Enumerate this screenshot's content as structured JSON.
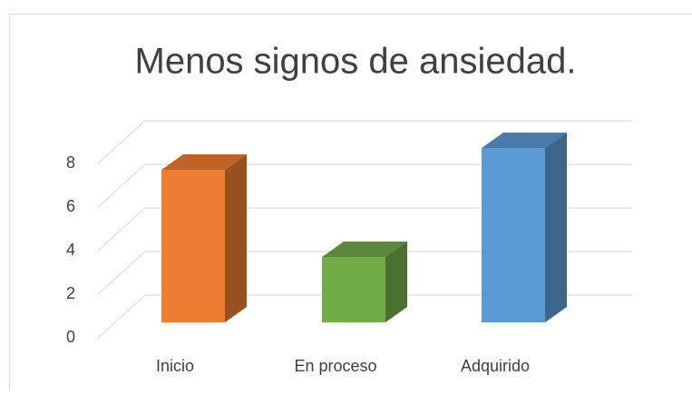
{
  "chart_data": {
    "type": "bar3d",
    "title": "Menos signos de ansiedad.",
    "categories": [
      "Inicio",
      "En proceso",
      "Adquirido"
    ],
    "series": [
      {
        "name": "Menos signos de ansiedad.",
        "values": [
          7,
          3,
          8
        ]
      }
    ],
    "colors": [
      "#ED7D31",
      "#70AD47",
      "#5B9BD5"
    ],
    "ylim": [
      0,
      8
    ],
    "yticks": [
      0,
      2,
      4,
      6,
      8
    ],
    "grid": true
  }
}
